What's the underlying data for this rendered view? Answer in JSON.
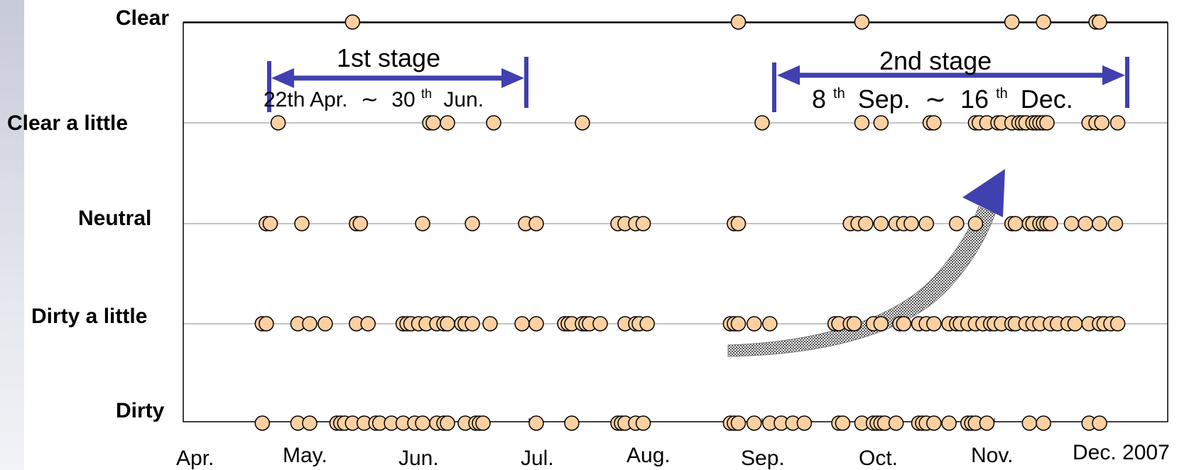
{
  "chart_data": {
    "type": "scatter",
    "year_label": "Dec. 2007",
    "y_categories": [
      "Dirty",
      "Dirty a little",
      "Neutral",
      "Clear a little",
      "Clear"
    ],
    "x_ticks": [
      {
        "label": "Apr.",
        "date": "2007-04-01"
      },
      {
        "label": "May.",
        "date": "2007-05-01"
      },
      {
        "label": "Jun.",
        "date": "2007-06-01"
      },
      {
        "label": "Jul.",
        "date": "2007-07-01"
      },
      {
        "label": "Aug.",
        "date": "2007-08-01"
      },
      {
        "label": "Sep.",
        "date": "2007-09-01"
      },
      {
        "label": "Oct.",
        "date": "2007-10-01"
      },
      {
        "label": "Nov.",
        "date": "2007-11-01"
      },
      {
        "label": "Dec. 2007",
        "date": "2007-12-01"
      }
    ],
    "xlim": [
      "2007-04-01",
      "2007-12-31"
    ],
    "gridlines": true,
    "points": {
      "Clear": [
        "2007-05-14",
        "2007-08-26",
        "2007-09-27",
        "2007-11-06",
        "2007-11-15",
        "2007-11-30",
        "2007-12-01"
      ],
      "Clear a little": [
        "2007-04-25",
        "2007-06-03",
        "2007-06-04",
        "2007-06-08",
        "2007-06-21",
        "2007-07-16",
        "2007-09-01",
        "2007-09-27",
        "2007-10-02",
        "2007-10-15",
        "2007-10-16",
        "2007-10-27",
        "2007-10-28",
        "2007-10-30",
        "2007-11-02",
        "2007-11-03",
        "2007-11-06",
        "2007-11-08",
        "2007-11-09",
        "2007-11-10",
        "2007-11-12",
        "2007-11-13",
        "2007-11-14",
        "2007-11-15",
        "2007-11-16",
        "2007-11-28",
        "2007-11-30",
        "2007-12-02",
        "2007-12-09"
      ],
      "Neutral": [
        "2007-04-22",
        "2007-04-23",
        "2007-05-01",
        "2007-05-15",
        "2007-05-16",
        "2007-06-01",
        "2007-06-15",
        "2007-06-30",
        "2007-07-03",
        "2007-07-26",
        "2007-07-28",
        "2007-07-31",
        "2007-08-02",
        "2007-08-25",
        "2007-08-26",
        "2007-09-24",
        "2007-09-26",
        "2007-09-28",
        "2007-10-02",
        "2007-10-06",
        "2007-10-08",
        "2007-10-10",
        "2007-10-14",
        "2007-10-22",
        "2007-10-27",
        "2007-11-06",
        "2007-11-07",
        "2007-11-11",
        "2007-11-12",
        "2007-11-14",
        "2007-11-15",
        "2007-11-16",
        "2007-11-17",
        "2007-11-23",
        "2007-11-27",
        "2007-12-01",
        "2007-12-08"
      ],
      "Dirty a little": [
        "2007-04-21",
        "2007-04-22",
        "2007-04-30",
        "2007-05-03",
        "2007-05-07",
        "2007-05-15",
        "2007-05-18",
        "2007-05-27",
        "2007-05-28",
        "2007-05-29",
        "2007-05-31",
        "2007-06-02",
        "2007-06-05",
        "2007-06-07",
        "2007-06-08",
        "2007-06-12",
        "2007-06-13",
        "2007-06-15",
        "2007-06-20",
        "2007-06-29",
        "2007-07-03",
        "2007-07-11",
        "2007-07-12",
        "2007-07-13",
        "2007-07-16",
        "2007-07-17",
        "2007-07-18",
        "2007-07-21",
        "2007-07-28",
        "2007-07-31",
        "2007-08-01",
        "2007-08-03",
        "2007-08-24",
        "2007-08-25",
        "2007-08-26",
        "2007-08-30",
        "2007-09-03",
        "2007-09-20",
        "2007-09-21",
        "2007-09-24",
        "2007-09-25",
        "2007-09-30",
        "2007-10-02",
        "2007-10-07",
        "2007-10-08",
        "2007-10-12",
        "2007-10-14",
        "2007-10-16",
        "2007-10-20",
        "2007-10-22",
        "2007-10-23",
        "2007-10-25",
        "2007-10-27",
        "2007-10-29",
        "2007-10-31",
        "2007-11-01",
        "2007-11-03",
        "2007-11-06",
        "2007-11-07",
        "2007-11-10",
        "2007-11-12",
        "2007-11-14",
        "2007-11-17",
        "2007-11-19",
        "2007-11-22",
        "2007-11-24",
        "2007-11-28",
        "2007-12-01",
        "2007-12-03",
        "2007-12-06",
        "2007-12-09"
      ],
      "Dirty": [
        "2007-04-21",
        "2007-04-30",
        "2007-05-03",
        "2007-05-10",
        "2007-05-11",
        "2007-05-12",
        "2007-05-14",
        "2007-05-17",
        "2007-05-20",
        "2007-05-21",
        "2007-05-24",
        "2007-05-27",
        "2007-05-30",
        "2007-06-01",
        "2007-06-05",
        "2007-06-07",
        "2007-06-08",
        "2007-06-13",
        "2007-06-16",
        "2007-06-17",
        "2007-06-18",
        "2007-07-03",
        "2007-07-13",
        "2007-07-26",
        "2007-07-27",
        "2007-07-28",
        "2007-07-31",
        "2007-08-02",
        "2007-08-24",
        "2007-08-25",
        "2007-08-26",
        "2007-08-30",
        "2007-09-03",
        "2007-09-06",
        "2007-09-09",
        "2007-09-12",
        "2007-09-21",
        "2007-09-22",
        "2007-09-27",
        "2007-09-30",
        "2007-10-01",
        "2007-10-02",
        "2007-10-03",
        "2007-10-06",
        "2007-10-12",
        "2007-10-13",
        "2007-10-14",
        "2007-10-16",
        "2007-10-20",
        "2007-10-25",
        "2007-10-26",
        "2007-10-27",
        "2007-10-30",
        "2007-11-11",
        "2007-11-15",
        "2007-11-28",
        "2007-12-01"
      ]
    },
    "stages": [
      {
        "label": "1st stage",
        "range_text_start": "22th Apr.",
        "range_text_sep": "∼",
        "range_text_end_num": "30",
        "range_text_end_sup": "th",
        "range_text_end": "Jun.",
        "start": "2007-04-22",
        "end": "2007-06-30"
      },
      {
        "label": "2nd stage",
        "range_text_start_num": "8",
        "range_text_start_sup": "th",
        "range_text_start": "Sep.",
        "range_text_sep": "∼",
        "range_text_end_num": "16",
        "range_text_end_sup": "th",
        "range_text_end": "Dec.",
        "start": "2007-09-08",
        "end": "2007-12-16"
      }
    ],
    "colors": {
      "marker_fill": "#fcd0a1",
      "marker_stroke": "#000000",
      "stage_arrow": "#4040b0",
      "trend_arrow_fill": "#c0c0c0",
      "trend_arrow_head": "#4040b0"
    }
  }
}
